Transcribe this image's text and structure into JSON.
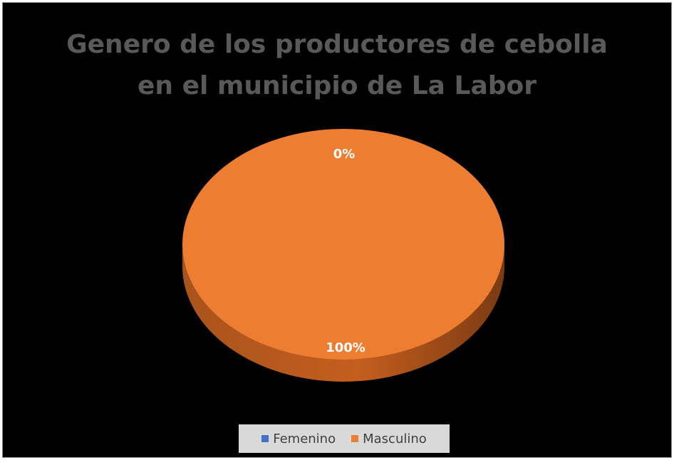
{
  "chart_data": {
    "type": "pie",
    "title_lines": [
      "Genero de los productores de cebolla",
      "en el municipio de La Labor"
    ],
    "style": "3d",
    "slices": [
      {
        "label": "Femenino",
        "value": 0,
        "percent_label": "0%",
        "color": "#4472c4"
      },
      {
        "label": "Masculino",
        "value": 100,
        "percent_label": "100%",
        "color": "#ed7d31"
      }
    ],
    "legend_position": "bottom",
    "background": "#000000"
  }
}
